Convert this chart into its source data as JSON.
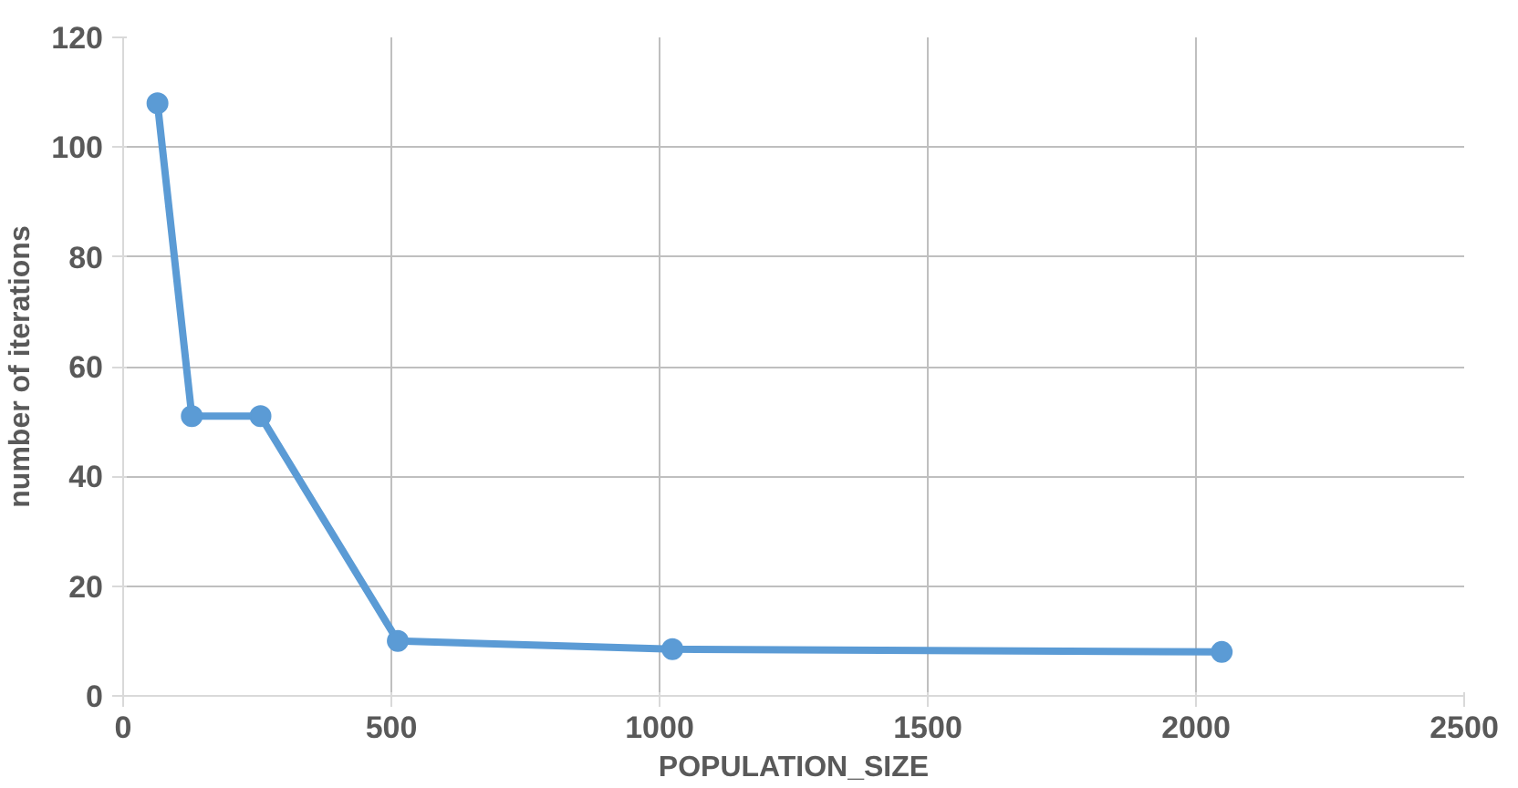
{
  "chart_data": {
    "type": "line",
    "xlabel": "POPULATION_SIZE",
    "ylabel": "number of iterations",
    "x": [
      64,
      128,
      256,
      512,
      1024,
      2048
    ],
    "series": [
      {
        "color": "#5b9bd5",
        "values": [
          108,
          51,
          51,
          10,
          8.5,
          8
        ]
      }
    ],
    "xlim": [
      0,
      2500
    ],
    "xticks": [
      0,
      500,
      1000,
      1500,
      2000,
      2500
    ],
    "ylim": [
      0,
      120
    ],
    "yticks": [
      0,
      20,
      40,
      60,
      80,
      100,
      120
    ],
    "grid": true,
    "marker": "circle",
    "line_style": "solid"
  }
}
